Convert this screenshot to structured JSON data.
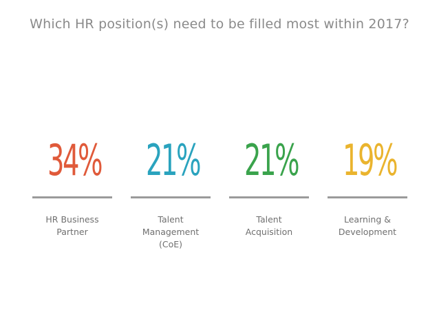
{
  "title": "Which HR position(s) need to be filled most within 2017?",
  "chart_data": {
    "type": "bar",
    "title": "Which HR position(s) need to be filled most within 2017?",
    "categories": [
      "HR Business Partner",
      "Talent Management (CoE)",
      "Talent Acquisition",
      "Learning & Development"
    ],
    "values": [
      34,
      21,
      21,
      19
    ],
    "value_suffix": "%",
    "items": [
      {
        "value_label": "34%",
        "label": "HR Business\nPartner",
        "color": "#e05a3a"
      },
      {
        "value_label": "21%",
        "label": "Talent\nManagement\n(CoE)",
        "color": "#2aa3be"
      },
      {
        "value_label": "21%",
        "label": "Talent\nAcquisition",
        "color": "#3aa34c"
      },
      {
        "value_label": "19%",
        "label": "Learning &\nDevelopment",
        "color": "#eab42e"
      }
    ],
    "divider_color": "#9a9a9a"
  }
}
